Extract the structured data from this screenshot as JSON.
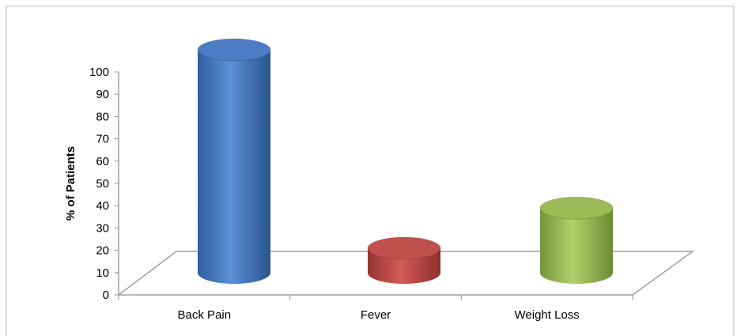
{
  "chart_data": {
    "type": "bar",
    "categories": [
      "Back Pain",
      "Fever",
      "Weight Loss"
    ],
    "values": [
      100,
      11,
      29
    ],
    "ylabel": "% of Patients",
    "xlabel": "",
    "ylim": [
      0,
      100
    ],
    "yticks": [
      "0",
      "10",
      "20",
      "30",
      "40",
      "50",
      "60",
      "70",
      "80",
      "90",
      "100"
    ],
    "colors": [
      "#4a7dc4",
      "#c0504d",
      "#9bbb59"
    ],
    "grid": false,
    "legend": "none"
  }
}
